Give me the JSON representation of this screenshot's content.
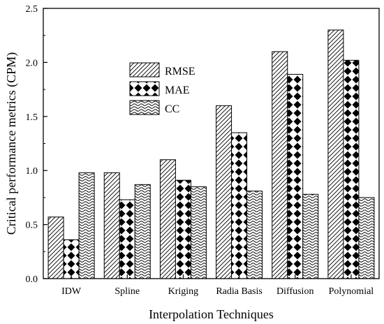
{
  "chart_data": {
    "type": "bar",
    "title": "",
    "xlabel": "Interpolation Techniques",
    "ylabel": "Critical performance metrics (CPM)",
    "categories": [
      "IDW",
      "Spline",
      "Kriging",
      "Radia Basis",
      "Diffusion",
      "Polynomial"
    ],
    "series": [
      {
        "name": "RMSE",
        "pattern": "diagonal-hatch",
        "values": [
          0.57,
          0.98,
          1.1,
          1.6,
          2.1,
          2.3
        ]
      },
      {
        "name": "MAE",
        "pattern": "black-diamonds",
        "values": [
          0.36,
          0.73,
          0.91,
          1.35,
          1.89,
          2.02
        ]
      },
      {
        "name": "CC",
        "pattern": "wavy",
        "values": [
          0.98,
          0.87,
          0.85,
          0.81,
          0.78,
          0.75
        ]
      }
    ],
    "ylim": [
      0,
      2.5
    ],
    "yticks": [
      "0.0",
      "0.5",
      "1.0",
      "1.5",
      "2.0",
      "2.5"
    ],
    "grid": false,
    "legend_position": "upper-left-center"
  }
}
